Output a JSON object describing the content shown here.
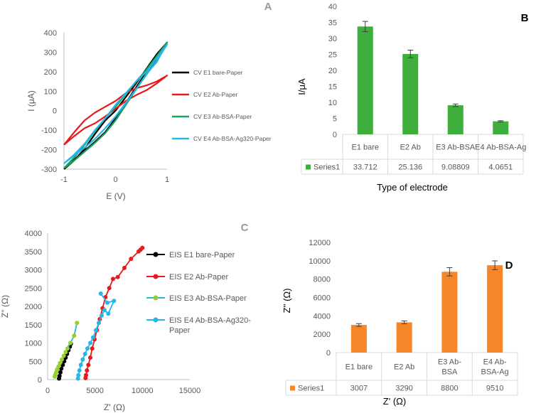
{
  "chart_data": [
    {
      "panel": "A",
      "type": "line",
      "xlabel": "E (V)",
      "ylabel": "I (μA)",
      "xlim": [
        -1,
        1
      ],
      "ylim": [
        -300,
        400
      ],
      "xticks": [
        "-1",
        "0",
        "1"
      ],
      "yticks": [
        "-300",
        "-200",
        "-100",
        "0",
        "100",
        "200",
        "300",
        "400"
      ],
      "series": [
        {
          "name": "CV E1 bare-Paper",
          "color": "#000000",
          "x": [
            -1,
            -0.8,
            -0.6,
            -0.4,
            -0.2,
            0,
            0.2,
            0.4,
            0.6,
            0.8,
            1,
            0.8,
            0.6,
            0.4,
            0.2,
            0,
            -0.2,
            -0.4,
            -0.6,
            -0.8,
            -1
          ],
          "y": [
            -300,
            -250,
            -205,
            -160,
            -110,
            -40,
            40,
            120,
            200,
            260,
            350,
            290,
            215,
            140,
            70,
            0,
            -50,
            -120,
            -195,
            -255,
            -300
          ]
        },
        {
          "name": "CV E2 Ab-Paper",
          "color": "#e8191d",
          "x": [
            -1,
            -0.8,
            -0.6,
            -0.4,
            -0.2,
            0,
            0.2,
            0.4,
            0.6,
            0.8,
            1,
            0.8,
            0.6,
            0.4,
            0.2,
            0,
            -0.2,
            -0.4,
            -0.6,
            -0.8,
            -1
          ],
          "y": [
            -175,
            -130,
            -90,
            -65,
            -30,
            10,
            50,
            80,
            105,
            140,
            180,
            150,
            130,
            115,
            90,
            50,
            20,
            -10,
            -50,
            -110,
            -175
          ]
        },
        {
          "name": "CV E3 Ab-BSA-Paper",
          "color": "#1aa160",
          "x": [
            -1,
            -0.8,
            -0.6,
            -0.4,
            -0.2,
            0,
            0.2,
            0.4,
            0.6,
            0.8,
            1,
            0.8,
            0.6,
            0.4,
            0.2,
            0,
            -0.2,
            -0.4,
            -0.6,
            -0.8,
            -1
          ],
          "y": [
            -295,
            -255,
            -210,
            -165,
            -115,
            -50,
            30,
            110,
            190,
            250,
            350,
            280,
            210,
            150,
            85,
            20,
            -40,
            -105,
            -175,
            -240,
            -295
          ]
        },
        {
          "name": "CV E4 Ab-BSA-Ag320-Paper",
          "color": "#26b6e8",
          "x": [
            -1,
            -0.8,
            -0.6,
            -0.4,
            -0.2,
            0,
            0.2,
            0.4,
            0.6,
            0.8,
            1,
            0.8,
            0.6,
            0.4,
            0.2,
            0,
            -0.2,
            -0.4,
            -0.6,
            -0.8,
            -1
          ],
          "y": [
            -270,
            -230,
            -190,
            -145,
            -90,
            -30,
            40,
            110,
            185,
            255,
            340,
            270,
            200,
            150,
            90,
            30,
            -40,
            -100,
            -170,
            -225,
            -270
          ]
        }
      ]
    },
    {
      "panel": "B",
      "type": "bar",
      "categories": [
        "E1 bare",
        "E2 Ab",
        "E3 Ab-BSA",
        "E4 Ab-BSA-Ag"
      ],
      "series": [
        {
          "name": "Series1",
          "values": [
            33.712,
            25.136,
            9.08809,
            4.0651
          ],
          "errors": [
            1.6,
            1.2,
            0.4,
            0.2
          ]
        }
      ],
      "table_values": [
        "33.712",
        "25.136",
        "9.08809",
        "4.0651"
      ],
      "xlabel": "Type of electrode",
      "ylabel": "I/μA",
      "ylim": [
        0,
        40
      ],
      "yticks": [
        "0",
        "5",
        "10",
        "15",
        "20",
        "25",
        "30",
        "35",
        "40"
      ],
      "color": "#3eae3c"
    },
    {
      "panel": "C",
      "type": "scatter",
      "xlabel": "Z' (Ω)",
      "ylabel": "Z'' (Ω)",
      "xlim": [
        0,
        15000
      ],
      "ylim": [
        0,
        4000
      ],
      "xticks": [
        "0",
        "5000",
        "10000",
        "15000"
      ],
      "yticks": [
        "0",
        "500",
        "1000",
        "1500",
        "2000",
        "2500",
        "3000",
        "3500",
        "4000"
      ],
      "series": [
        {
          "name": "EIS E1 bare-Paper",
          "color": "#000000",
          "marker": "#000000",
          "x": [
            1200,
            1250,
            1350,
            1450,
            1600,
            1750,
            1900,
            2050,
            2200,
            2350,
            2450
          ],
          "y": [
            30,
            100,
            200,
            300,
            400,
            500,
            600,
            700,
            800,
            900,
            980
          ]
        },
        {
          "name": "EIS E2 Ab-Paper",
          "color": "#e8191d",
          "marker": "#e8191d",
          "x": [
            4000,
            4050,
            4150,
            4300,
            4500,
            4700,
            4950,
            5200,
            5500,
            5800,
            6100,
            6500,
            6900,
            7400,
            8100,
            8800,
            9600,
            10000,
            9800
          ],
          "y": [
            40,
            120,
            250,
            400,
            600,
            850,
            1100,
            1350,
            1650,
            1950,
            2250,
            2500,
            2750,
            2800,
            3050,
            3300,
            3500,
            3600,
            3550
          ]
        },
        {
          "name": "EIS E3 Ab-BSA-Paper",
          "color": "#26b6e8",
          "marker": "#9acd32",
          "x": [
            750,
            800,
            900,
            1000,
            1150,
            1300,
            1500,
            1700,
            1900,
            2100,
            2400,
            2800,
            3100
          ],
          "y": [
            80,
            130,
            200,
            280,
            360,
            450,
            550,
            650,
            750,
            850,
            1000,
            1200,
            1550
          ]
        },
        {
          "name": "EIS E4 Ab-BSA-Ag320-Paper",
          "color": "#26b6e8",
          "marker": "#26b6e8",
          "x": [
            3200,
            3250,
            3350,
            3500,
            3700,
            3950,
            4200,
            4500,
            4800,
            5100,
            5400,
            5700,
            6000,
            6400,
            7000,
            6300,
            5600
          ],
          "y": [
            30,
            120,
            250,
            400,
            550,
            700,
            850,
            1000,
            1150,
            1350,
            1550,
            1750,
            1900,
            1800,
            2150,
            2100,
            2350
          ]
        }
      ]
    },
    {
      "panel": "D",
      "type": "bar",
      "categories": [
        "E1 bare",
        "E2 Ab",
        "E3 Ab-\nBSA",
        "E4 Ab-\nBSA-Ag"
      ],
      "series": [
        {
          "name": "Series1",
          "values": [
            3007,
            3290,
            8800,
            9510
          ],
          "errors": [
            150,
            160,
            450,
            480
          ]
        }
      ],
      "table_values": [
        "3007",
        "3290",
        "8800",
        "9510"
      ],
      "xlabel": "Z' (Ω)",
      "ylabel": "Z'' (Ω)",
      "ylim": [
        0,
        12000
      ],
      "yticks": [
        "0",
        "2000",
        "4000",
        "6000",
        "8000",
        "10000",
        "12000"
      ],
      "color": "#f5862a"
    }
  ],
  "panel_labels": [
    "A",
    "B",
    "C",
    "D"
  ]
}
